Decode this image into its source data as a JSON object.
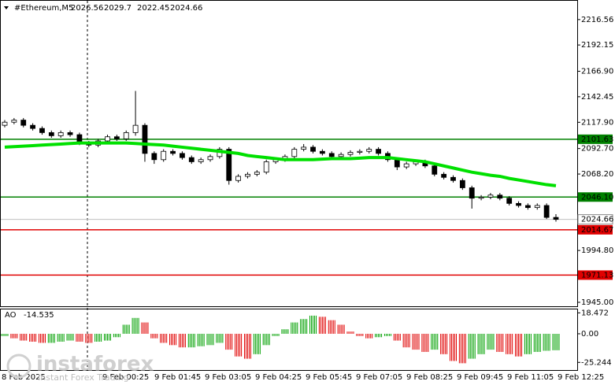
{
  "chart_data": [
    {
      "type": "candlestick",
      "symbol": "#Ethereum,M5",
      "open": [
        2115,
        2118,
        2120,
        2115,
        2112,
        2108,
        2105,
        2108,
        2106,
        2098,
        2096,
        2100,
        2104,
        2102,
        2108,
        2115,
        2088,
        2082,
        2090,
        2088,
        2084,
        2080,
        2082,
        2085,
        2092,
        2062,
        2066,
        2068,
        2070,
        2080,
        2082,
        2085,
        2092,
        2094,
        2090,
        2088,
        2085,
        2087,
        2089,
        2090,
        2092,
        2088,
        2082,
        2075,
        2078,
        2080,
        2076,
        2068,
        2065,
        2062,
        2055,
        2045,
        2046,
        2048,
        2045,
        2040,
        2038,
        2036,
        2038,
        2026.56
      ],
      "high": [
        2120,
        2122,
        2122,
        2117,
        2114,
        2110,
        2110,
        2110,
        2108,
        2100,
        2102,
        2106,
        2106,
        2110,
        2148,
        2117,
        2090,
        2092,
        2092,
        2090,
        2086,
        2084,
        2087,
        2094,
        2094,
        2068,
        2070,
        2072,
        2082,
        2084,
        2087,
        2094,
        2097,
        2096,
        2092,
        2090,
        2089,
        2091,
        2092,
        2094,
        2094,
        2090,
        2084,
        2080,
        2082,
        2082,
        2078,
        2070,
        2067,
        2064,
        2057,
        2048,
        2050,
        2050,
        2047,
        2042,
        2040,
        2040,
        2040,
        2029.7
      ],
      "low": [
        2113,
        2116,
        2113,
        2110,
        2106,
        2103,
        2103,
        2104,
        2096,
        2094,
        2094,
        2098,
        2100,
        2100,
        2105,
        2080,
        2078,
        2080,
        2086,
        2082,
        2078,
        2078,
        2080,
        2083,
        2058,
        2060,
        2064,
        2066,
        2068,
        2078,
        2080,
        2083,
        2090,
        2088,
        2086,
        2083,
        2083,
        2085,
        2087,
        2088,
        2086,
        2080,
        2072,
        2073,
        2076,
        2074,
        2066,
        2063,
        2060,
        2053,
        2035,
        2043,
        2044,
        2043,
        2038,
        2036,
        2034,
        2034,
        2025,
        2022.45
      ],
      "close": [
        2118,
        2120,
        2115,
        2112,
        2108,
        2105,
        2108,
        2106,
        2098,
        2096,
        2100,
        2104,
        2102,
        2108,
        2115,
        2088,
        2082,
        2090,
        2088,
        2084,
        2080,
        2082,
        2085,
        2092,
        2062,
        2066,
        2068,
        2070,
        2080,
        2082,
        2085,
        2092,
        2094,
        2090,
        2088,
        2085,
        2087,
        2089,
        2090,
        2092,
        2088,
        2082,
        2075,
        2078,
        2080,
        2076,
        2068,
        2065,
        2062,
        2055,
        2045,
        2046,
        2048,
        2045,
        2040,
        2038,
        2036,
        2038,
        2026.56,
        2024.66
      ],
      "ma": {
        "color": "#00e000",
        "values": [
          2094,
          2094.5,
          2095,
          2095.5,
          2096,
          2096.5,
          2097,
          2097.5,
          2098,
          2098,
          2098,
          2098,
          2098,
          2098,
          2097.5,
          2097,
          2096.5,
          2096,
          2095,
          2094,
          2093,
          2092,
          2091,
          2090,
          2089,
          2088,
          2086,
          2085,
          2084,
          2083,
          2082,
          2082,
          2082,
          2082,
          2082.5,
          2083,
          2083,
          2083,
          2083.5,
          2084,
          2084,
          2084,
          2083,
          2082,
          2081,
          2080,
          2078,
          2076,
          2074,
          2072,
          2070,
          2068.5,
          2067,
          2066,
          2064,
          2062.5,
          2061,
          2059.5,
          2058,
          2057
        ]
      },
      "levels": [
        {
          "value": 2101.63,
          "color": "#008000"
        },
        {
          "value": 2046.1,
          "label": "2046.10",
          "color": "#008000"
        },
        {
          "value": 2014.67,
          "color": "#e00000"
        },
        {
          "value": 1971.13,
          "color": "#e00000"
        }
      ],
      "ylim": [
        1941.2,
        2234.6
      ],
      "yticks": [
        2216.56,
        2192.15,
        {
          "value": 2166.9,
          "label": "2166.90"
        },
        2142.45,
        {
          "value": 2117.9,
          "label": "2117.90"
        },
        {
          "value": 2092.7,
          "label": "2092.70"
        },
        {
          "value": 2068.2,
          "label": "2068.20"
        },
        {
          "value": 1994.8,
          "label": "1994.80"
        },
        {
          "value": 1945,
          "label": "1945.00"
        }
      ],
      "xlabels": [
        "8 Feb 2025",
        "9 Feb 00:25",
        "9 Feb 01:45",
        "9 Feb 03:05",
        "9 Feb 04:25",
        "9 Feb 05:45",
        "9 Feb 07:05",
        "9 Feb 08:25",
        "9 Feb 09:45",
        "9 Feb 11:05",
        "9 Feb 12:25"
      ],
      "watermark": {
        "brand": "instaforex",
        "tagline": "Instant Forex Trading"
      }
    },
    {
      "type": "bar",
      "title": "AO",
      "values": [
        -2,
        -4,
        -6,
        -7,
        -8,
        -8,
        -7,
        -6,
        -7,
        -8,
        -7,
        -6,
        -3,
        8,
        14,
        10,
        -4,
        -8,
        -10,
        -12,
        -12,
        -11,
        -10,
        -8,
        -14,
        -20,
        -22,
        -18,
        -10,
        -2,
        4,
        10,
        13,
        16,
        15,
        12,
        8,
        2,
        -2,
        -4,
        -3,
        -2,
        -6,
        -12,
        -14,
        -16,
        -14,
        -18,
        -24,
        -26,
        -22,
        -18,
        -14,
        -16,
        -18,
        -20,
        -18,
        -16,
        -15,
        -14.535
      ],
      "ylim": [
        -32,
        21.5
      ],
      "yticks": [
        18.472,
        {
          "value": 0,
          "label": "0.00"
        },
        -25.244
      ]
    }
  ]
}
